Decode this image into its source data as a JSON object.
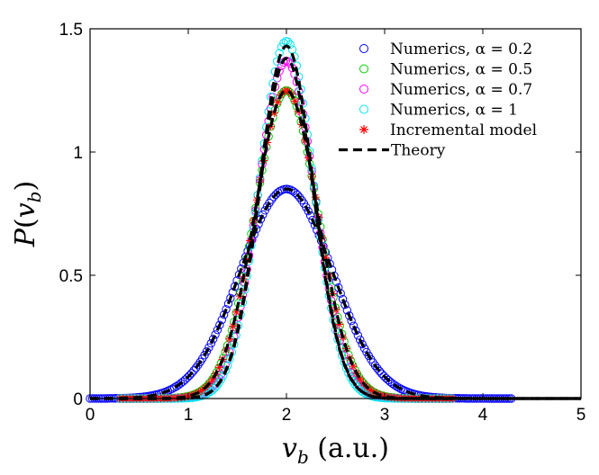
{
  "chart_data": {
    "type": "scatter",
    "xlabel": "v_b (a.u.)",
    "ylabel": "P(v_b)",
    "xlim": [
      0,
      5
    ],
    "ylim": [
      0,
      1.5
    ],
    "x_ticks": [
      "0",
      "1",
      "2",
      "3",
      "4",
      "5"
    ],
    "y_ticks": [
      "0",
      "0.5",
      "1",
      "1.5"
    ],
    "legend_position": "top-right",
    "series": [
      {
        "name": "Numerics, α = 0.2",
        "marker": "circle",
        "color": "#0000ff",
        "mean": 2.0,
        "sigma": 0.47,
        "x_range": [
          0.0,
          4.3
        ],
        "x": [
          0.0,
          0.3,
          0.6,
          0.9,
          1.2,
          1.5,
          1.7,
          1.9,
          2.0,
          2.1,
          2.3,
          2.5,
          2.8,
          3.1,
          3.4,
          3.7,
          4.0,
          4.3
        ],
        "values": [
          0.0,
          0.01,
          0.04,
          0.12,
          0.28,
          0.48,
          0.65,
          0.82,
          0.85,
          0.82,
          0.66,
          0.48,
          0.24,
          0.1,
          0.04,
          0.01,
          0.0,
          0.0
        ]
      },
      {
        "name": "Numerics, α = 0.5",
        "marker": "circle",
        "color": "#00cc00",
        "mean": 2.0,
        "sigma": 0.32,
        "x_range": [
          0.3,
          3.7
        ],
        "x": [
          0.3,
          0.8,
          1.2,
          1.5,
          1.7,
          1.9,
          2.0,
          2.1,
          2.3,
          2.5,
          2.8,
          3.2,
          3.7
        ],
        "values": [
          0.0,
          0.02,
          0.08,
          0.36,
          0.7,
          1.18,
          1.25,
          1.18,
          0.7,
          0.36,
          0.08,
          0.02,
          0.0
        ]
      },
      {
        "name": "Numerics, α = 0.7",
        "marker": "circle",
        "color": "#ff00ff",
        "mean": 2.0,
        "sigma": 0.29,
        "x_range": [
          0.3,
          3.7
        ],
        "x": [
          0.3,
          0.8,
          1.2,
          1.5,
          1.7,
          1.9,
          2.0,
          2.1,
          2.3,
          2.5,
          2.8,
          3.2,
          3.7
        ],
        "values": [
          0.0,
          0.01,
          0.03,
          0.31,
          0.66,
          1.27,
          1.37,
          1.27,
          0.66,
          0.31,
          0.03,
          0.01,
          0.0
        ]
      },
      {
        "name": "Numerics, α = 1",
        "marker": "circle",
        "color": "#00e5ee",
        "mean": 2.0,
        "sigma": 0.275,
        "x_range": [
          0.3,
          3.7
        ],
        "x": [
          0.3,
          0.8,
          1.2,
          1.5,
          1.7,
          1.9,
          2.0,
          2.1,
          2.3,
          2.5,
          2.8,
          3.2,
          3.7
        ],
        "values": [
          0.0,
          0.01,
          0.02,
          0.27,
          0.64,
          1.35,
          1.45,
          1.35,
          0.64,
          0.27,
          0.02,
          0.01,
          0.0
        ]
      },
      {
        "name": "Incremental model",
        "marker": "asterisk",
        "color": "#ff0000",
        "mean": 2.0,
        "sigma": 0.32,
        "x_range": [
          0.3,
          3.7
        ],
        "x": [
          0.3,
          0.8,
          1.2,
          1.5,
          1.7,
          1.9,
          2.0,
          2.1,
          2.3,
          2.5,
          2.8,
          3.2,
          3.7
        ],
        "values": [
          0.0,
          0.02,
          0.08,
          0.36,
          0.7,
          1.18,
          1.25,
          1.18,
          0.7,
          0.36,
          0.08,
          0.02,
          0.0
        ]
      },
      {
        "name": "Theory",
        "marker": "dashed-line",
        "color": "#000000",
        "curves": [
          {
            "mean": 2.0,
            "sigma": 0.47,
            "peak": 0.85
          },
          {
            "mean": 2.0,
            "sigma": 0.32,
            "peak": 1.25
          },
          {
            "mean": 2.0,
            "sigma": 0.275,
            "peak": 1.38
          },
          {
            "mean": 2.0,
            "sigma": 0.275,
            "peak": 1.43
          }
        ],
        "x_range": [
          0.0,
          5.0
        ]
      }
    ]
  }
}
